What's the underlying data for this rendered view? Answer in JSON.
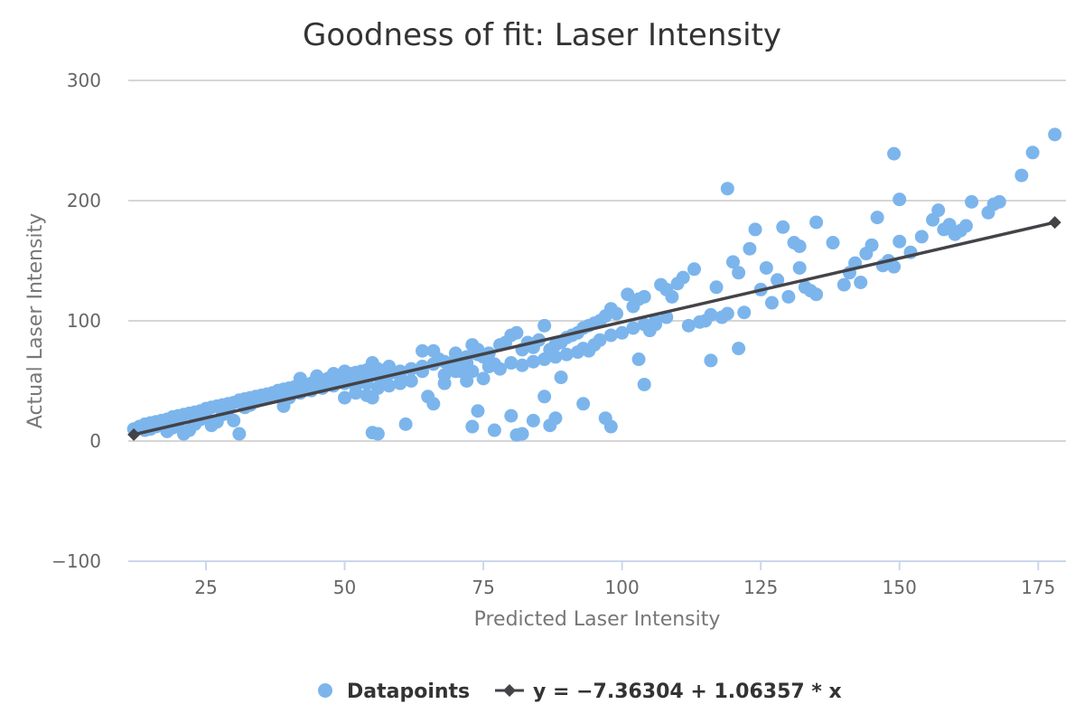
{
  "chart_data": {
    "type": "scatter",
    "title": "Goodness of fit: Laser Intensity",
    "xlabel": "Predicted Laser Intensity",
    "ylabel": "Actual Laser Intensity",
    "xlim": [
      11,
      180
    ],
    "ylim": [
      -100,
      300
    ],
    "xticks": [
      25,
      50,
      75,
      100,
      125,
      150,
      175
    ],
    "yticks": [
      -100,
      0,
      100,
      200,
      300
    ],
    "grid": true,
    "legend_position": "bottom-center",
    "colors": {
      "points": "#7cb5ec",
      "line": "#434348"
    },
    "series": [
      {
        "name": "Datapoints",
        "type": "scatter",
        "points": [
          [
            12,
            10
          ],
          [
            13,
            12
          ],
          [
            14,
            14
          ],
          [
            15,
            15
          ],
          [
            16,
            16
          ],
          [
            17,
            17
          ],
          [
            18,
            18
          ],
          [
            19,
            20
          ],
          [
            20,
            21
          ],
          [
            21,
            22
          ],
          [
            22,
            23
          ],
          [
            23,
            24
          ],
          [
            24,
            25
          ],
          [
            25,
            27
          ],
          [
            26,
            28
          ],
          [
            27,
            29
          ],
          [
            28,
            30
          ],
          [
            29,
            31
          ],
          [
            30,
            32
          ],
          [
            31,
            34
          ],
          [
            32,
            35
          ],
          [
            33,
            36
          ],
          [
            34,
            37
          ],
          [
            35,
            38
          ],
          [
            36,
            39
          ],
          [
            37,
            40
          ],
          [
            38,
            42
          ],
          [
            39,
            43
          ],
          [
            40,
            44
          ],
          [
            41,
            45
          ],
          [
            42,
            46
          ],
          [
            43,
            47
          ],
          [
            44,
            48
          ],
          [
            45,
            49
          ],
          [
            46,
            50
          ],
          [
            47,
            52
          ],
          [
            48,
            53
          ],
          [
            49,
            54
          ],
          [
            50,
            55
          ],
          [
            51,
            56
          ],
          [
            52,
            57
          ],
          [
            53,
            58
          ],
          [
            54,
            59
          ],
          [
            55,
            60
          ],
          [
            14,
            9
          ],
          [
            15,
            10
          ],
          [
            16,
            12
          ],
          [
            17,
            13
          ],
          [
            18,
            8
          ],
          [
            19,
            11
          ],
          [
            20,
            15
          ],
          [
            21,
            6
          ],
          [
            22,
            9
          ],
          [
            23,
            14
          ],
          [
            24,
            18
          ],
          [
            25,
            20
          ],
          [
            26,
            13
          ],
          [
            27,
            16
          ],
          [
            28,
            22
          ],
          [
            29,
            26
          ],
          [
            30,
            17
          ],
          [
            31,
            6
          ],
          [
            32,
            28
          ],
          [
            33,
            30
          ],
          [
            34,
            33
          ],
          [
            36,
            36
          ],
          [
            38,
            38
          ],
          [
            39,
            29
          ],
          [
            40,
            36
          ],
          [
            42,
            40
          ],
          [
            44,
            42
          ],
          [
            46,
            44
          ],
          [
            48,
            46
          ],
          [
            50,
            48
          ],
          [
            52,
            50
          ],
          [
            54,
            52
          ],
          [
            56,
            54
          ],
          [
            58,
            56
          ],
          [
            60,
            58
          ],
          [
            62,
            60
          ],
          [
            64,
            62
          ],
          [
            66,
            64
          ],
          [
            68,
            66
          ],
          [
            70,
            68
          ],
          [
            72,
            70
          ],
          [
            74,
            72
          ],
          [
            42,
            52
          ],
          [
            45,
            54
          ],
          [
            48,
            56
          ],
          [
            50,
            58
          ],
          [
            52,
            46
          ],
          [
            54,
            48
          ],
          [
            55,
            65
          ],
          [
            56,
            60
          ],
          [
            57,
            52
          ],
          [
            58,
            62
          ],
          [
            60,
            54
          ],
          [
            62,
            60
          ],
          [
            64,
            58
          ],
          [
            64,
            75
          ],
          [
            66,
            75
          ],
          [
            67,
            68
          ],
          [
            68,
            48
          ],
          [
            69,
            62
          ],
          [
            70,
            73
          ],
          [
            71,
            58
          ],
          [
            72,
            65
          ],
          [
            73,
            80
          ],
          [
            74,
            76
          ],
          [
            75,
            70
          ],
          [
            76,
            73
          ],
          [
            77,
            64
          ],
          [
            78,
            80
          ],
          [
            79,
            82
          ],
          [
            80,
            88
          ],
          [
            81,
            90
          ],
          [
            82,
            76
          ],
          [
            83,
            82
          ],
          [
            84,
            78
          ],
          [
            85,
            84
          ],
          [
            86,
            96
          ],
          [
            87,
            76
          ],
          [
            88,
            80
          ],
          [
            89,
            82
          ],
          [
            90,
            86
          ],
          [
            91,
            88
          ],
          [
            92,
            90
          ],
          [
            93,
            94
          ],
          [
            94,
            96
          ],
          [
            95,
            98
          ],
          [
            96,
            100
          ],
          [
            97,
            104
          ],
          [
            98,
            110
          ],
          [
            99,
            106
          ],
          [
            50,
            36
          ],
          [
            52,
            40
          ],
          [
            54,
            38
          ],
          [
            55,
            36
          ],
          [
            56,
            44
          ],
          [
            58,
            46
          ],
          [
            60,
            48
          ],
          [
            62,
            50
          ],
          [
            65,
            37
          ],
          [
            66,
            31
          ],
          [
            68,
            55
          ],
          [
            70,
            58
          ],
          [
            72,
            50
          ],
          [
            73,
            58
          ],
          [
            75,
            52
          ],
          [
            76,
            62
          ],
          [
            78,
            60
          ],
          [
            80,
            65
          ],
          [
            82,
            63
          ],
          [
            84,
            66
          ],
          [
            86,
            68
          ],
          [
            88,
            70
          ],
          [
            90,
            72
          ],
          [
            92,
            74
          ],
          [
            93,
            77
          ],
          [
            94,
            75
          ],
          [
            95,
            80
          ],
          [
            96,
            84
          ],
          [
            98,
            88
          ],
          [
            100,
            90
          ],
          [
            102,
            94
          ],
          [
            104,
            97
          ],
          [
            106,
            100
          ],
          [
            108,
            103
          ],
          [
            55,
            7
          ],
          [
            56,
            6
          ],
          [
            61,
            14
          ],
          [
            73,
            12
          ],
          [
            74,
            25
          ],
          [
            77,
            9
          ],
          [
            80,
            21
          ],
          [
            81,
            5
          ],
          [
            82,
            6
          ],
          [
            84,
            17
          ],
          [
            86,
            37
          ],
          [
            87,
            13
          ],
          [
            88,
            19
          ],
          [
            89,
            53
          ],
          [
            93,
            31
          ],
          [
            97,
            19
          ],
          [
            98,
            12
          ],
          [
            103,
            68
          ],
          [
            104,
            47
          ],
          [
            101,
            122
          ],
          [
            102,
            112
          ],
          [
            103,
            118
          ],
          [
            104,
            120
          ],
          [
            105,
            92
          ],
          [
            106,
            97
          ],
          [
            107,
            130
          ],
          [
            108,
            126
          ],
          [
            109,
            120
          ],
          [
            110,
            131
          ],
          [
            111,
            136
          ],
          [
            112,
            96
          ],
          [
            113,
            143
          ],
          [
            114,
            99
          ],
          [
            115,
            100
          ],
          [
            116,
            105
          ],
          [
            117,
            128
          ],
          [
            118,
            103
          ],
          [
            119,
            106
          ],
          [
            120,
            149
          ],
          [
            121,
            140
          ],
          [
            122,
            107
          ],
          [
            123,
            160
          ],
          [
            124,
            176
          ],
          [
            125,
            126
          ],
          [
            126,
            144
          ],
          [
            127,
            115
          ],
          [
            128,
            134
          ],
          [
            129,
            178
          ],
          [
            130,
            120
          ],
          [
            131,
            165
          ],
          [
            132,
            162
          ],
          [
            133,
            128
          ],
          [
            134,
            125
          ],
          [
            135,
            182
          ],
          [
            116,
            67
          ],
          [
            119,
            210
          ],
          [
            121,
            77
          ],
          [
            132,
            144
          ],
          [
            135,
            122
          ],
          [
            138,
            165
          ],
          [
            140,
            130
          ],
          [
            141,
            140
          ],
          [
            142,
            148
          ],
          [
            143,
            132
          ],
          [
            144,
            156
          ],
          [
            145,
            163
          ],
          [
            146,
            186
          ],
          [
            147,
            146
          ],
          [
            148,
            150
          ],
          [
            149,
            145
          ],
          [
            150,
            166
          ],
          [
            152,
            157
          ],
          [
            154,
            170
          ],
          [
            156,
            184
          ],
          [
            157,
            192
          ],
          [
            158,
            176
          ],
          [
            159,
            180
          ],
          [
            160,
            172
          ],
          [
            161,
            175
          ],
          [
            162,
            179
          ],
          [
            163,
            199
          ],
          [
            166,
            190
          ],
          [
            167,
            197
          ],
          [
            168,
            199
          ],
          [
            149,
            239
          ],
          [
            150,
            201
          ],
          [
            172,
            221
          ],
          [
            174,
            240
          ],
          [
            178,
            255
          ]
        ]
      },
      {
        "name": "y = −7.36304 + 1.06357 * x",
        "type": "line",
        "points": [
          [
            12,
            5.4
          ],
          [
            178,
            181.9
          ]
        ]
      }
    ]
  }
}
